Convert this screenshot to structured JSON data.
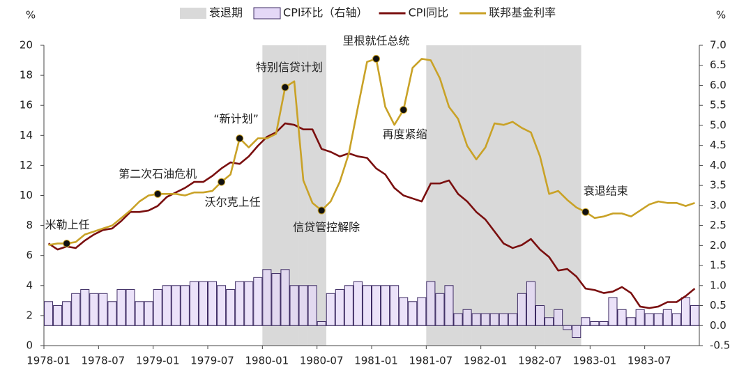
{
  "chart_data": {
    "type": "bar-line",
    "y_unit": "%",
    "y2_unit": "%",
    "categories": [
      "1978-01",
      null,
      null,
      null,
      null,
      null,
      "1978-07",
      null,
      null,
      null,
      null,
      null,
      "1979-01",
      null,
      null,
      null,
      null,
      null,
      "1979-07",
      null,
      null,
      null,
      null,
      null,
      "1980-01",
      null,
      null,
      null,
      null,
      null,
      "1980-07",
      null,
      null,
      null,
      null,
      null,
      "1981-01",
      null,
      null,
      null,
      null,
      null,
      "1981-07",
      null,
      null,
      null,
      null,
      null,
      "1982-01",
      null,
      null,
      null,
      null,
      null,
      "1982-07",
      null,
      null,
      null,
      null,
      null,
      "1983-01",
      null,
      null,
      null,
      null,
      null,
      "1983-07",
      null,
      null,
      null,
      null,
      null
    ],
    "ylim": [
      0,
      20
    ],
    "yticks": [
      0,
      2,
      4,
      6,
      8,
      10,
      12,
      14,
      16,
      18,
      20
    ],
    "y2lim": [
      -0.5,
      7
    ],
    "y2ticks": [
      -0.5,
      {
        "value": 0,
        "label": "0.0"
      },
      0.5,
      {
        "value": 1,
        "label": "1.0"
      },
      1.5,
      {
        "value": 2,
        "label": "2.0"
      },
      2.5,
      {
        "value": 3,
        "label": "3.0"
      },
      3.5,
      {
        "value": 4,
        "label": "4.0"
      },
      4.5,
      {
        "value": 5,
        "label": "5.0"
      },
      5.5,
      {
        "value": 6,
        "label": "6.0"
      },
      6.5,
      {
        "value": 7,
        "label": "7.0"
      }
    ],
    "series": [
      {
        "name": "衰退期",
        "type": "band",
        "color": "#d9d9d9",
        "values": [
          null,
          null,
          null,
          null,
          null,
          null,
          null,
          null,
          null,
          null,
          null,
          null,
          null,
          null,
          null,
          null,
          null,
          null,
          null,
          null,
          null,
          null,
          null,
          null,
          20,
          20,
          20,
          20,
          20,
          20,
          20,
          null,
          null,
          null,
          null,
          null,
          null,
          null,
          null,
          null,
          null,
          null,
          20,
          20,
          20,
          20,
          20,
          20,
          20,
          20,
          20,
          20,
          20,
          20,
          20,
          20,
          20,
          20,
          20,
          null,
          null,
          null,
          null,
          null,
          null,
          null,
          null,
          null,
          null,
          null,
          null,
          null
        ]
      },
      {
        "name": "CPI环比（右轴）",
        "type": "bar",
        "axis": "y2",
        "color": "#e4d8f7",
        "edge_color": "#3d2b63",
        "values": [
          0.6,
          0.5,
          0.6,
          0.8,
          0.9,
          0.8,
          0.8,
          0.6,
          0.9,
          0.9,
          0.6,
          0.6,
          0.9,
          1.0,
          1.0,
          1.0,
          1.1,
          1.1,
          1.1,
          1.0,
          0.9,
          1.1,
          1.1,
          1.2,
          1.4,
          1.3,
          1.4,
          1.0,
          1.0,
          1.0,
          0.1,
          0.8,
          0.9,
          1.0,
          1.1,
          1.0,
          1.0,
          1.0,
          1.0,
          0.7,
          0.6,
          0.7,
          1.1,
          0.8,
          1.0,
          0.3,
          0.4,
          0.3,
          0.3,
          0.3,
          0.3,
          0.3,
          0.8,
          1.1,
          0.5,
          0.2,
          0.4,
          -0.1,
          -0.3,
          0.2,
          0.1,
          0.1,
          0.7,
          0.4,
          0.2,
          0.4,
          0.3,
          0.3,
          0.4,
          0.3,
          0.7,
          0.5
        ]
      },
      {
        "name": "CPI同比",
        "type": "line",
        "color": "#7a0f0f",
        "values": [
          6.8,
          6.4,
          6.6,
          6.5,
          7.0,
          7.4,
          7.7,
          7.8,
          8.3,
          8.9,
          8.9,
          9.0,
          9.3,
          9.9,
          10.2,
          10.5,
          10.9,
          10.9,
          11.3,
          11.8,
          12.2,
          12.1,
          12.6,
          13.3,
          13.9,
          14.2,
          14.8,
          14.7,
          14.4,
          14.4,
          13.1,
          12.9,
          12.6,
          12.8,
          12.6,
          12.5,
          11.8,
          11.4,
          10.5,
          10.0,
          9.8,
          9.6,
          10.8,
          10.8,
          11.0,
          10.1,
          9.6,
          8.9,
          8.4,
          7.6,
          6.8,
          6.5,
          6.7,
          7.1,
          6.4,
          5.9,
          5.0,
          5.1,
          4.6,
          3.8,
          3.7,
          3.5,
          3.6,
          3.9,
          3.5,
          2.6,
          2.5,
          2.6,
          2.9,
          2.9,
          3.3,
          3.8
        ]
      },
      {
        "name": "联邦基金利率",
        "type": "line",
        "color": "#c9a227",
        "values": [
          6.7,
          6.8,
          6.8,
          6.9,
          7.4,
          7.6,
          7.8,
          8.0,
          8.5,
          9.0,
          9.6,
          10.0,
          10.1,
          10.1,
          10.1,
          10.0,
          10.2,
          10.2,
          10.3,
          10.9,
          11.4,
          13.8,
          13.2,
          13.8,
          13.8,
          14.1,
          17.2,
          17.6,
          11.0,
          9.5,
          9.0,
          9.6,
          10.9,
          12.8,
          15.9,
          18.9,
          19.1,
          15.9,
          14.7,
          15.7,
          18.5,
          19.1,
          19.0,
          17.8,
          15.9,
          15.1,
          13.3,
          12.4,
          13.2,
          14.8,
          14.7,
          14.9,
          14.5,
          14.2,
          12.6,
          10.1,
          10.3,
          9.7,
          9.2,
          8.9,
          8.5,
          8.6,
          8.8,
          8.8,
          8.6,
          9.0,
          9.4,
          9.6,
          9.5,
          9.5,
          9.3,
          9.5
        ]
      }
    ],
    "annotations": [
      {
        "text": "米勒上任",
        "series": 3,
        "point": 2
      },
      {
        "text": "第二次石油危机",
        "series": 3,
        "point": 12
      },
      {
        "text": "沃尔克上任",
        "series": 3,
        "point": 19
      },
      {
        "text": "“新计划”",
        "series": 3,
        "point": 21
      },
      {
        "text": "特别信贷计划",
        "series": 3,
        "point": 26
      },
      {
        "text": "信贷管控解除",
        "series": 3,
        "point": 30
      },
      {
        "text": "里根就任总统",
        "series": 3,
        "point": 36
      },
      {
        "text": "再度紧缩",
        "series": 3,
        "point": 39
      },
      {
        "text": "衰退结束",
        "series": 3,
        "point": 59
      }
    ]
  }
}
